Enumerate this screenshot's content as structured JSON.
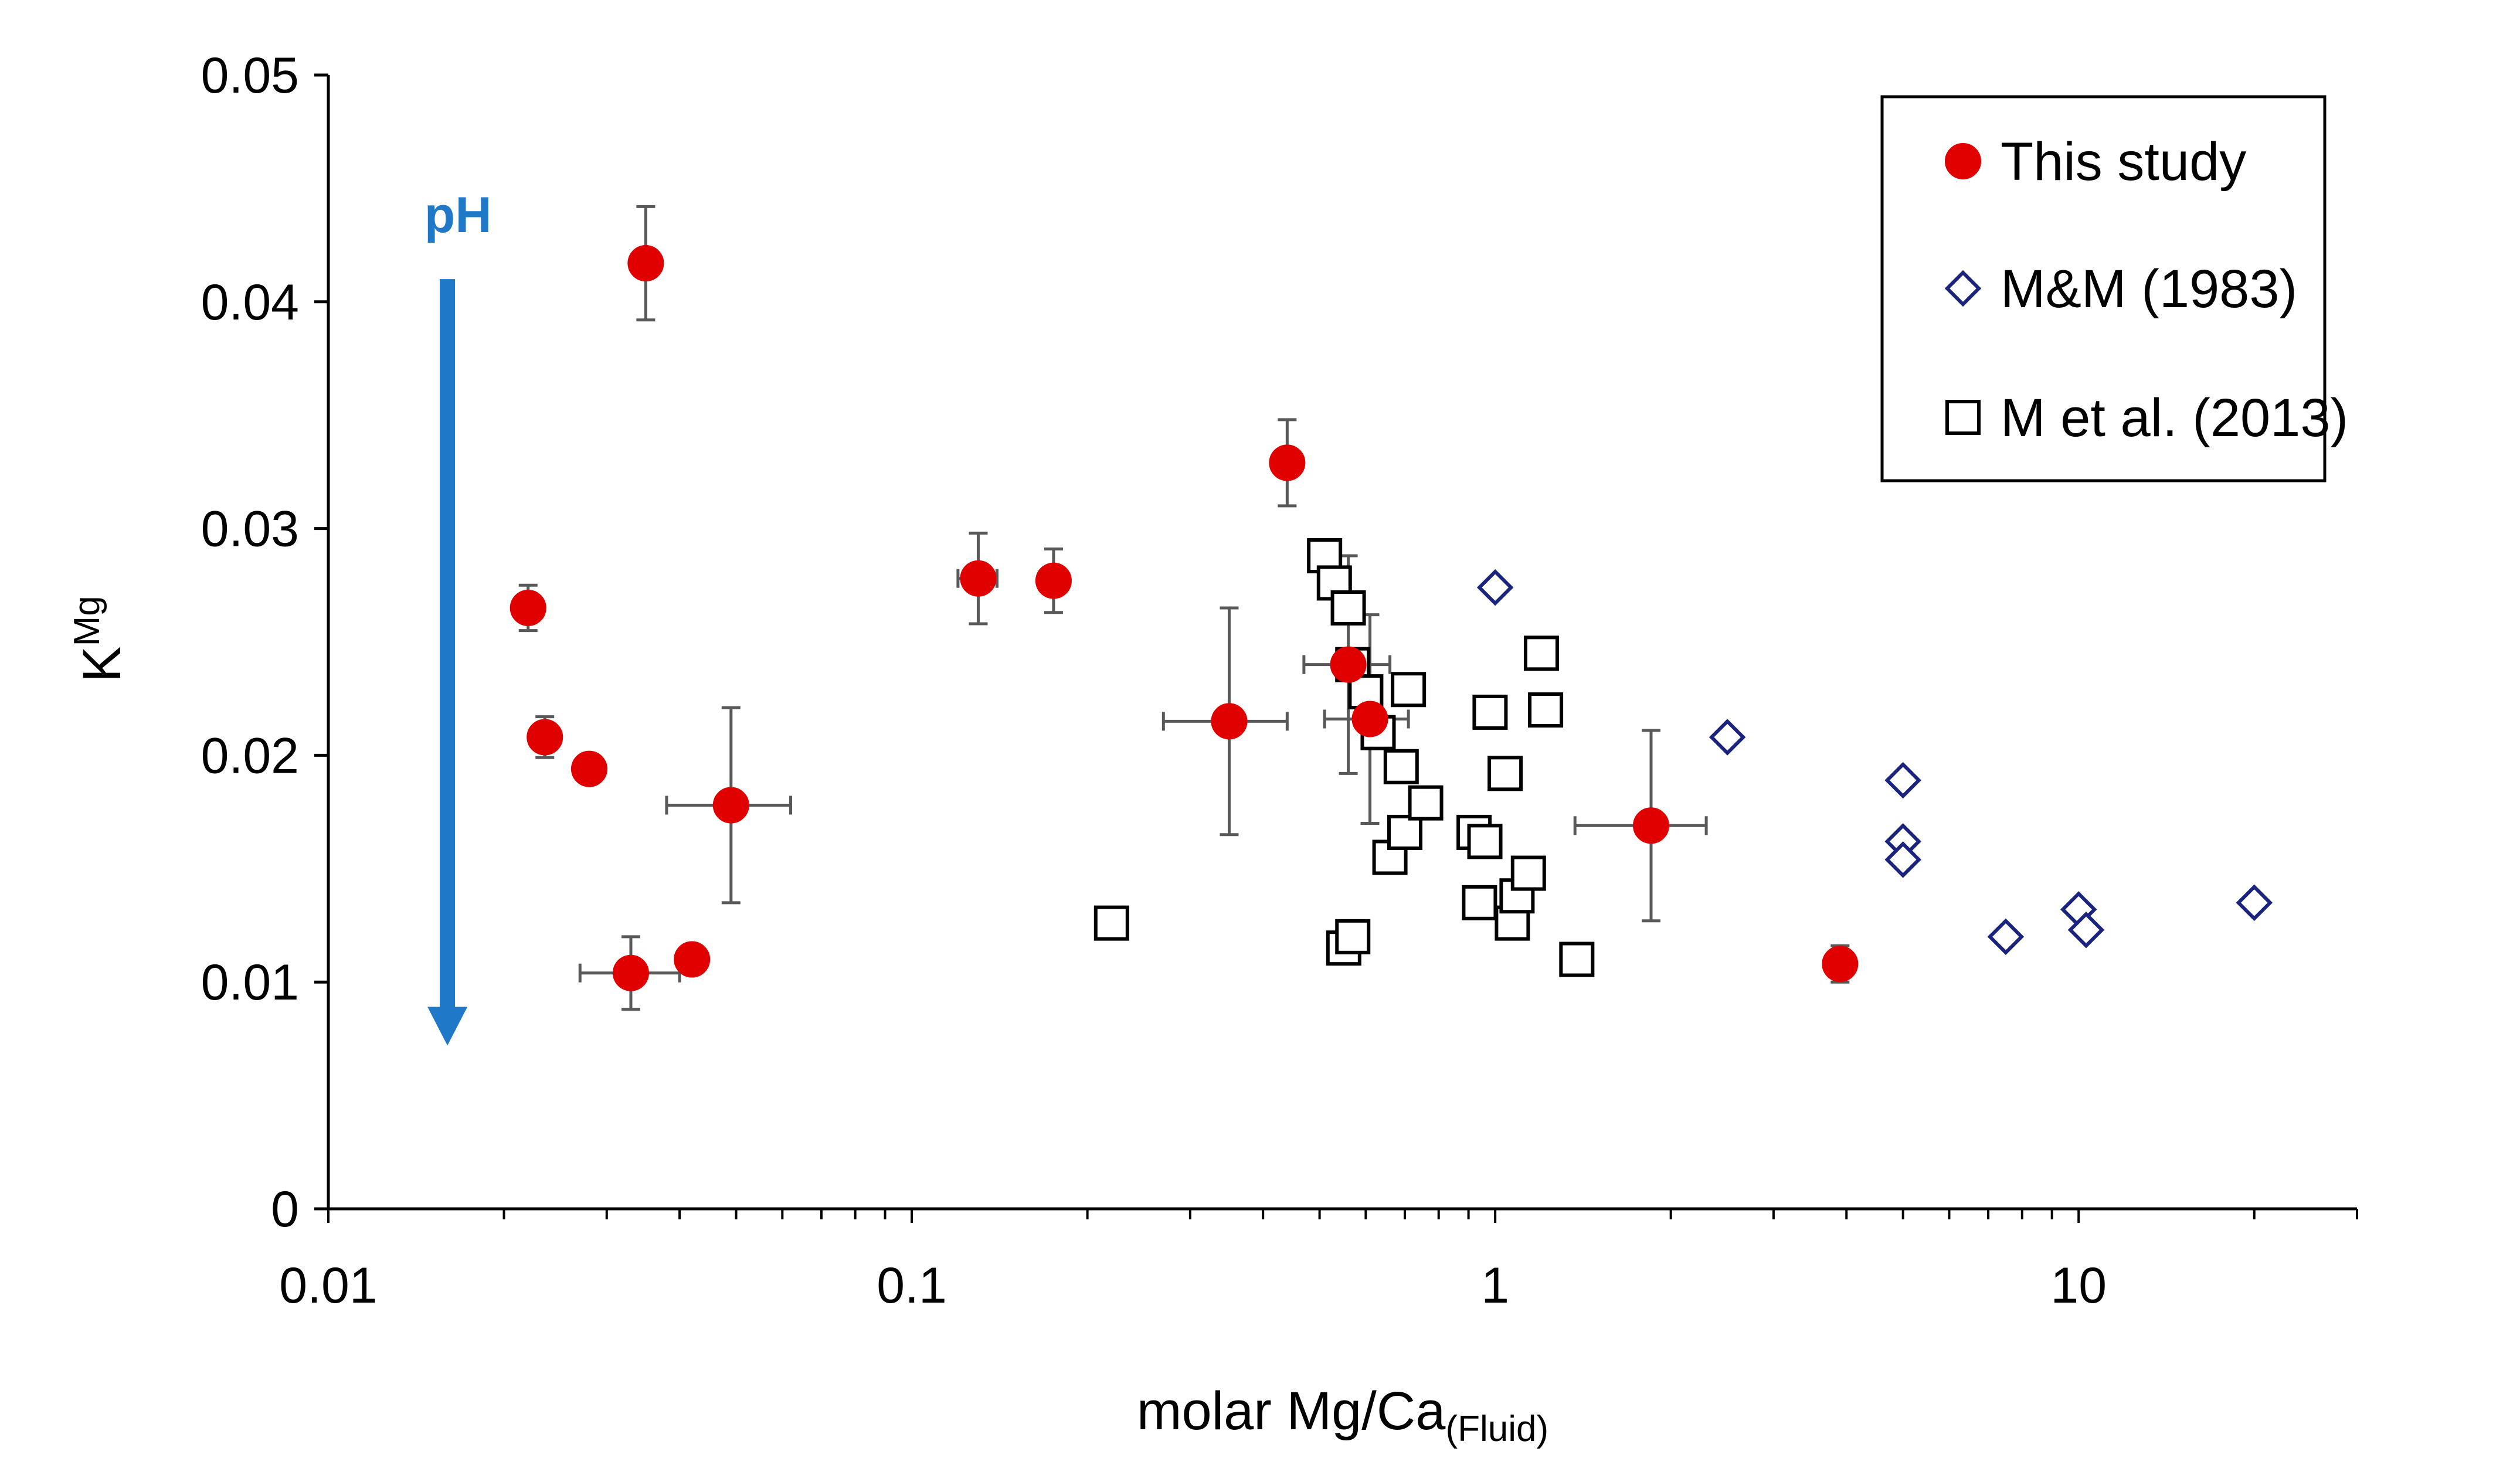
{
  "chart_data": {
    "type": "scatter",
    "title": "",
    "xlabel": "molar Mg/Ca",
    "xlabel_subscript": "(Fluid)",
    "ylabel": "K",
    "ylabel_superscript": "Mg",
    "xscale": "log",
    "xlim": [
      0.01,
      30
    ],
    "ylim": [
      0,
      0.05
    ],
    "x_ticks": [
      0.01,
      0.1,
      1,
      10
    ],
    "x_tick_labels": [
      "0.01",
      "0.1",
      "1",
      "10"
    ],
    "y_ticks": [
      0,
      0.01,
      0.02,
      0.03,
      0.04,
      0.05
    ],
    "y_tick_labels": [
      "0",
      "0.01",
      "0.02",
      "0.03",
      "0.04",
      "0.05"
    ],
    "legend_position": "top-right",
    "annotation": {
      "text": "pH",
      "color": "#1F78C8",
      "direction": "down",
      "x": 0.016,
      "y_from": 0.041,
      "y_to": 0.0072
    },
    "series": [
      {
        "name": "This study",
        "marker": "circle",
        "color": "#E00000",
        "points": [
          {
            "x": 0.022,
            "y": 0.0265,
            "yerr": 0.001
          },
          {
            "x": 0.0235,
            "y": 0.0208,
            "yerr": 0.0009
          },
          {
            "x": 0.028,
            "y": 0.0194
          },
          {
            "x": 0.033,
            "y": 0.0104,
            "xerr": [
              0.027,
              0.04
            ],
            "yerr": 0.0016
          },
          {
            "x": 0.035,
            "y": 0.0417,
            "yerr": 0.0025
          },
          {
            "x": 0.042,
            "y": 0.011
          },
          {
            "x": 0.049,
            "y": 0.0178,
            "xerr": [
              0.038,
              0.062
            ],
            "yerr": 0.0043
          },
          {
            "x": 0.13,
            "y": 0.0278,
            "xerr": [
              0.12,
              0.14
            ],
            "yerr": 0.002
          },
          {
            "x": 0.175,
            "y": 0.0277,
            "yerr": 0.0014
          },
          {
            "x": 0.35,
            "y": 0.0215,
            "xerr": [
              0.27,
              0.44
            ],
            "yerr": 0.005
          },
          {
            "x": 0.44,
            "y": 0.0329,
            "yerr": 0.0019
          },
          {
            "x": 0.56,
            "y": 0.024,
            "xerr": [
              0.47,
              0.66
            ],
            "yerr": 0.0048
          },
          {
            "x": 0.61,
            "y": 0.0216,
            "xerr": [
              0.51,
              0.71
            ],
            "yerr": 0.0046
          },
          {
            "x": 1.85,
            "y": 0.0169,
            "xerr": [
              1.37,
              2.3
            ],
            "yerr": 0.0042
          },
          {
            "x": 3.9,
            "y": 0.0108,
            "xerr": [
              3.7,
              4.1
            ],
            "yerr": 0.0008
          }
        ]
      },
      {
        "name": "M&M (1983)",
        "marker": "diamond",
        "color": "#1A237E",
        "points": [
          {
            "x": 1.0,
            "y": 0.0274
          },
          {
            "x": 2.5,
            "y": 0.0208
          },
          {
            "x": 5.0,
            "y": 0.0189
          },
          {
            "x": 5.0,
            "y": 0.0162
          },
          {
            "x": 5.0,
            "y": 0.0154
          },
          {
            "x": 7.5,
            "y": 0.012
          },
          {
            "x": 10.0,
            "y": 0.0132
          },
          {
            "x": 10.3,
            "y": 0.0123
          },
          {
            "x": 20.0,
            "y": 0.0135
          }
        ]
      },
      {
        "name": "M et al. (2013)",
        "marker": "square",
        "color": "#000000",
        "points": [
          {
            "x": 0.22,
            "y": 0.0126
          },
          {
            "x": 0.51,
            "y": 0.0288
          },
          {
            "x": 0.53,
            "y": 0.0276
          },
          {
            "x": 0.56,
            "y": 0.0265
          },
          {
            "x": 0.57,
            "y": 0.024
          },
          {
            "x": 0.6,
            "y": 0.0228
          },
          {
            "x": 0.63,
            "y": 0.021
          },
          {
            "x": 0.55,
            "y": 0.0115
          },
          {
            "x": 0.57,
            "y": 0.012
          },
          {
            "x": 0.66,
            "y": 0.0155
          },
          {
            "x": 0.69,
            "y": 0.0195
          },
          {
            "x": 0.7,
            "y": 0.0166
          },
          {
            "x": 0.71,
            "y": 0.0229
          },
          {
            "x": 0.76,
            "y": 0.0179
          },
          {
            "x": 0.92,
            "y": 0.0166
          },
          {
            "x": 0.96,
            "y": 0.0162
          },
          {
            "x": 0.94,
            "y": 0.0135
          },
          {
            "x": 0.98,
            "y": 0.0219
          },
          {
            "x": 1.04,
            "y": 0.0192
          },
          {
            "x": 1.07,
            "y": 0.0126
          },
          {
            "x": 1.09,
            "y": 0.0138
          },
          {
            "x": 1.14,
            "y": 0.0148
          },
          {
            "x": 1.2,
            "y": 0.0245
          },
          {
            "x": 1.22,
            "y": 0.022
          },
          {
            "x": 1.38,
            "y": 0.011
          }
        ]
      }
    ]
  }
}
